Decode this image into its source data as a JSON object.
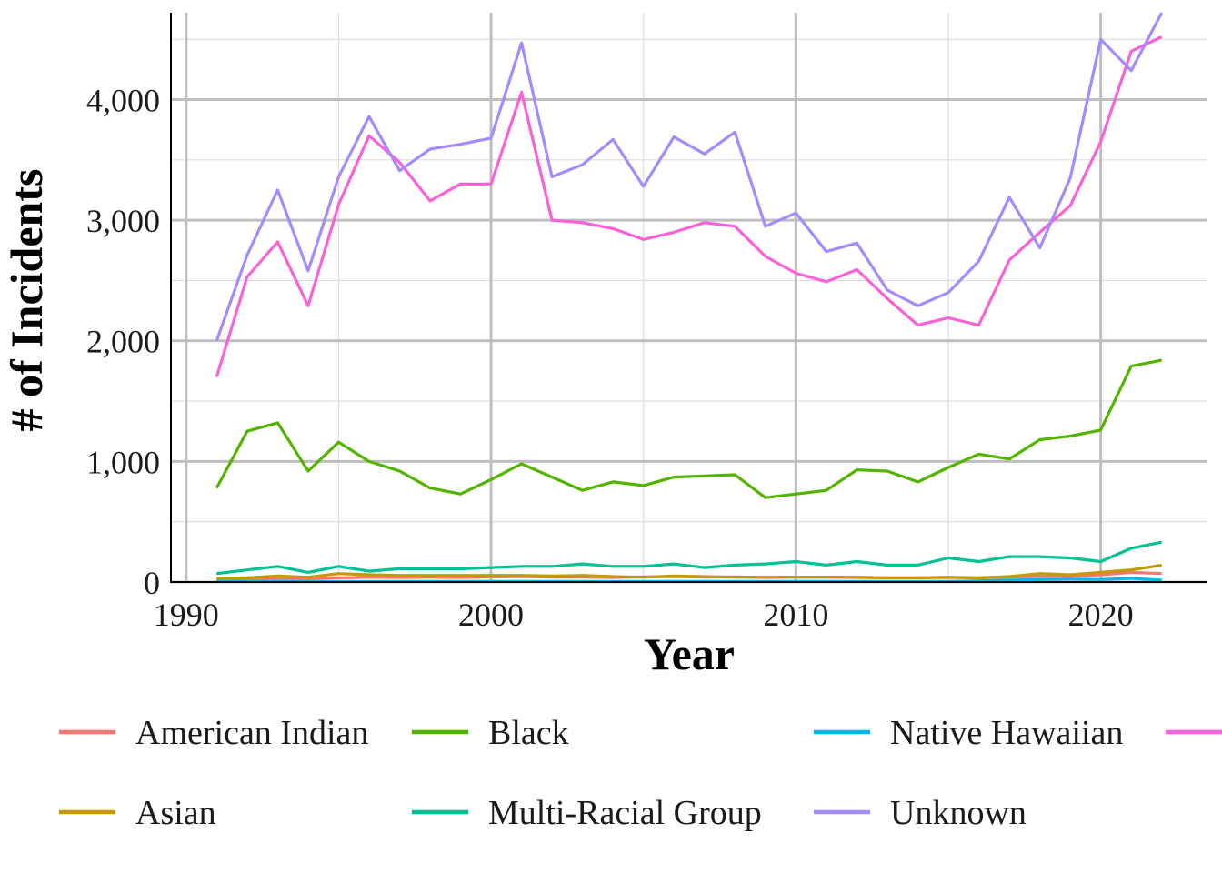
{
  "chart_data": {
    "type": "line",
    "xlabel": "Year",
    "ylabel": "# of Incidents",
    "xlim": [
      1989.5,
      2023.5
    ],
    "ylim": [
      0,
      4720
    ],
    "x_ticks": [
      1990,
      2000,
      2010,
      2020
    ],
    "x_tick_labels": [
      "1990",
      "2000",
      "2010",
      "2020"
    ],
    "y_ticks": [
      0,
      1000,
      2000,
      3000,
      4000
    ],
    "y_tick_labels": [
      "0",
      "1,000",
      "2,000",
      "3,000",
      "4,000"
    ],
    "grid": true,
    "legend_position": "bottom",
    "x": [
      1991,
      1992,
      1993,
      1994,
      1995,
      1996,
      1997,
      1998,
      1999,
      2000,
      2001,
      2002,
      2003,
      2004,
      2005,
      2006,
      2007,
      2008,
      2009,
      2010,
      2011,
      2012,
      2013,
      2014,
      2015,
      2016,
      2017,
      2018,
      2019,
      2020,
      2021,
      2022
    ],
    "series": [
      {
        "name": "American Indian",
        "color": "#F8766D",
        "values": [
          20,
          25,
          30,
          28,
          35,
          40,
          38,
          40,
          38,
          42,
          45,
          40,
          40,
          38,
          42,
          45,
          40,
          42,
          38,
          40,
          40,
          38,
          35,
          35,
          38,
          35,
          40,
          45,
          50,
          60,
          80,
          70
        ]
      },
      {
        "name": "Asian",
        "color": "#C49A00",
        "values": [
          30,
          35,
          50,
          40,
          70,
          60,
          55,
          55,
          55,
          55,
          55,
          50,
          55,
          45,
          40,
          50,
          45,
          40,
          40,
          40,
          40,
          40,
          35,
          35,
          40,
          35,
          45,
          70,
          60,
          80,
          100,
          140
        ]
      },
      {
        "name": "Black",
        "color": "#53B400",
        "values": [
          780,
          1250,
          1320,
          920,
          1160,
          1000,
          920,
          780,
          730,
          850,
          980,
          870,
          760,
          830,
          800,
          870,
          880,
          890,
          700,
          730,
          760,
          930,
          920,
          830,
          950,
          1060,
          1020,
          1180,
          1210,
          1260,
          1790,
          1840
        ]
      },
      {
        "name": "Multi-Racial Group",
        "color": "#00C094",
        "values": [
          70,
          100,
          130,
          80,
          130,
          90,
          110,
          110,
          110,
          120,
          130,
          130,
          150,
          130,
          130,
          150,
          120,
          140,
          150,
          170,
          140,
          170,
          140,
          140,
          200,
          170,
          210,
          210,
          200,
          170,
          280,
          330
        ]
      },
      {
        "name": "Native Hawaiian",
        "color": "#00B6EB",
        "values": [
          5,
          5,
          5,
          5,
          5,
          5,
          5,
          5,
          5,
          5,
          5,
          5,
          5,
          5,
          5,
          5,
          5,
          5,
          5,
          5,
          5,
          5,
          5,
          5,
          5,
          10,
          15,
          20,
          25,
          20,
          30,
          15
        ]
      },
      {
        "name": "",
        "color": "#FB61D7",
        "values": [
          1700,
          2530,
          2820,
          2290,
          3130,
          3700,
          3480,
          3160,
          3300,
          3300,
          4060,
          3000,
          2980,
          2930,
          2840,
          2900,
          2980,
          2950,
          2700,
          2560,
          2490,
          2590,
          2350,
          2130,
          2190,
          2130,
          2670,
          2900,
          3120,
          3650,
          4400,
          4520
        ]
      },
      {
        "name": "Unknown",
        "color": "#A58AFF",
        "values": [
          2000,
          2710,
          3250,
          2580,
          3360,
          3860,
          3410,
          3590,
          3630,
          3680,
          4470,
          3360,
          3460,
          3670,
          3280,
          3690,
          3550,
          3730,
          2950,
          3060,
          2740,
          2810,
          2420,
          2290,
          2400,
          2660,
          3190,
          2770,
          3350,
          4500,
          4240,
          4720
        ]
      }
    ]
  }
}
